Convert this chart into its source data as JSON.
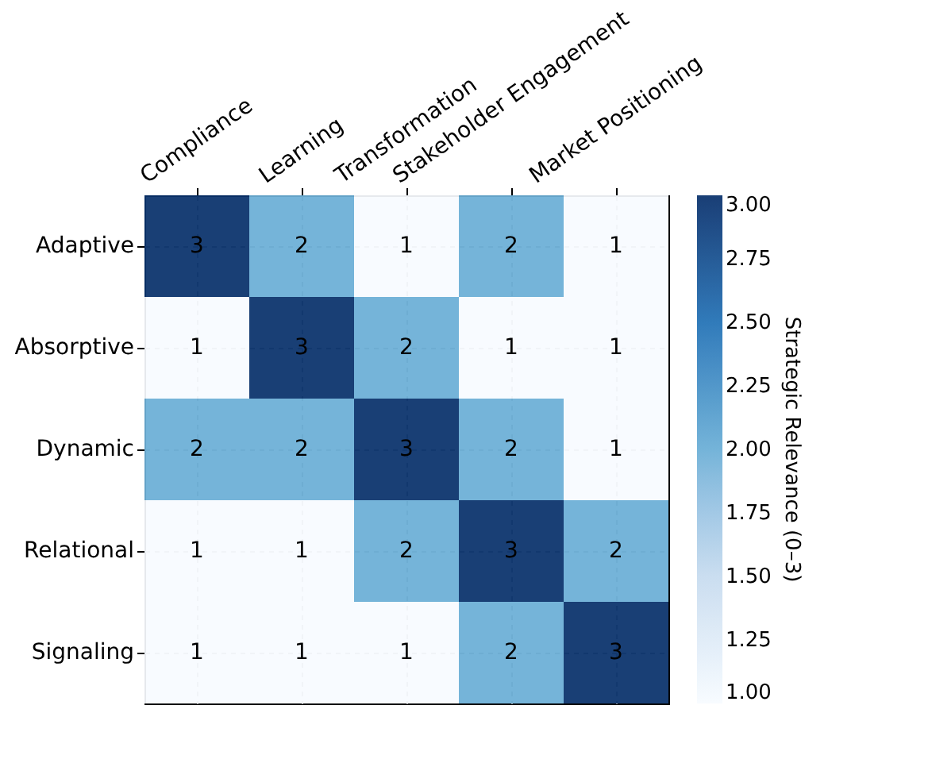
{
  "chart_data": {
    "type": "heatmap",
    "clabel": "Strategic Relevance (0–3)",
    "categories": [
      "Compliance",
      "Learning",
      "Transformation",
      "Stakeholder Engagement",
      "Market Positioning"
    ],
    "y_categories": [
      "Adaptive",
      "Absorptive",
      "Dynamic",
      "Relational",
      "Signaling"
    ],
    "cells": [
      [
        3,
        2,
        1,
        2,
        1
      ],
      [
        1,
        3,
        2,
        1,
        1
      ],
      [
        2,
        2,
        3,
        2,
        1
      ],
      [
        1,
        1,
        2,
        3,
        2
      ],
      [
        1,
        1,
        1,
        2,
        3
      ]
    ],
    "clim": [
      1,
      3
    ],
    "cticks": [
      {
        "value": 1,
        "label": "1.00"
      },
      {
        "value": 1.25,
        "label": "1.25"
      },
      {
        "value": 1.5,
        "label": "1.50"
      },
      {
        "value": 1.75,
        "label": "1.75"
      },
      {
        "value": 2,
        "label": "2.00"
      },
      {
        "value": 2.25,
        "label": "2.25"
      },
      {
        "value": 2.5,
        "label": "2.50"
      },
      {
        "value": 2.75,
        "label": "2.75"
      },
      {
        "value": 3,
        "label": "3.00"
      }
    ],
    "data_labels": true,
    "grid": true
  }
}
